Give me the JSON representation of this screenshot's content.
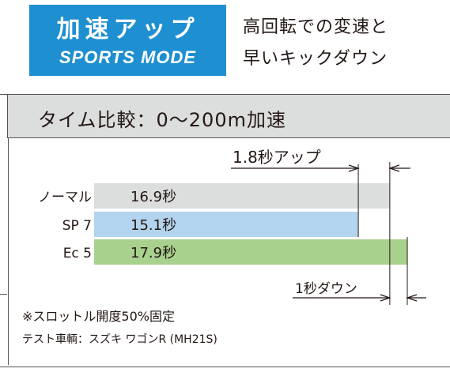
{
  "header": {
    "badge_title": "加速アップ",
    "badge_subtitle": "SPORTS MODE",
    "desc_line1": "高回転での変速と",
    "desc_line2": "早いキックダウン"
  },
  "chart_data": {
    "type": "bar",
    "orientation": "horizontal",
    "title": "タイム比較：0～200m加速",
    "categories": [
      "ノーマル",
      "SP 7",
      "Ec 5"
    ],
    "values": [
      16.9,
      15.1,
      17.9
    ],
    "value_labels": [
      "16.9秒",
      "15.1秒",
      "17.9秒"
    ],
    "unit": "秒",
    "bar_colors": [
      "#dcdddd",
      "#b3d4ee",
      "#a9d18e"
    ],
    "annotations": [
      {
        "text": "1.8秒アップ",
        "between": [
          "ノーマル",
          "SP 7"
        ]
      },
      {
        "text": "1秒ダウン",
        "between": [
          "ノーマル",
          "Ec 5"
        ]
      }
    ],
    "grid": false
  },
  "notes": {
    "line1": "※スロットル開度50%固定",
    "line2": "テスト車輌：スズキ ワゴンR (MH21S)"
  },
  "colors": {
    "badge": "#1e8fd0",
    "title_bar": "#dcdddd",
    "text": "#231815"
  }
}
